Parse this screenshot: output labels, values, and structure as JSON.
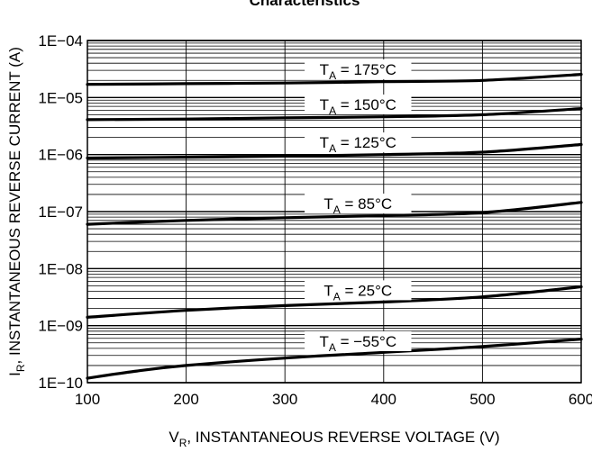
{
  "chart_data": {
    "type": "line",
    "title": "Characteristics",
    "xlabel": {
      "main": "V",
      "sub": "R",
      "rest": ", INSTANTANEOUS REVERSE VOLTAGE (V)"
    },
    "ylabel": {
      "main": "I",
      "sub": "R",
      "rest": ", INSTANTANEOUS REVERSE CURRENT (A)"
    },
    "x_scale": "linear",
    "y_scale": "log",
    "xlim": [
      100,
      600
    ],
    "ylim": [
      1e-10,
      0.0001
    ],
    "x_ticks": [
      100,
      200,
      300,
      400,
      500,
      600
    ],
    "x_tick_labels": [
      "100",
      "200",
      "300",
      "400",
      "500",
      "600"
    ],
    "y_ticks": [
      1e-10,
      1e-09,
      1e-08,
      1e-07,
      1e-06,
      1e-05,
      0.0001
    ],
    "y_tick_labels": [
      "1E−10",
      "1E−09",
      "1E−08",
      "1E−07",
      "1E−06",
      "1E−05",
      "1E−04"
    ],
    "grid": true,
    "line_color": "#000000",
    "series": [
      {
        "name": "T_A = 175°C",
        "label_main": "T",
        "label_sub": "A",
        "label_rest": " = 175°C",
        "x": [
          100,
          200,
          300,
          400,
          500,
          600
        ],
        "y": [
          1.7e-05,
          1.75e-05,
          1.8e-05,
          1.9e-05,
          2e-05,
          2.55e-05
        ]
      },
      {
        "name": "T_A = 150°C",
        "label_main": "T",
        "label_sub": "A",
        "label_rest": " = 150°C",
        "x": [
          100,
          200,
          300,
          400,
          500,
          600
        ],
        "y": [
          4.1e-06,
          4.2e-06,
          4.4e-06,
          4.6e-06,
          5e-06,
          6.4e-06
        ]
      },
      {
        "name": "T_A = 125°C",
        "label_main": "T",
        "label_sub": "A",
        "label_rest": " = 125°C",
        "x": [
          100,
          200,
          300,
          400,
          500,
          600
        ],
        "y": [
          8.7e-07,
          9e-07,
          9.4e-07,
          1e-06,
          1.1e-06,
          1.5e-06
        ]
      },
      {
        "name": "T_A = 85°C",
        "label_main": "T",
        "label_sub": "A",
        "label_rest": " = 85°C",
        "x": [
          100,
          200,
          300,
          400,
          500,
          600
        ],
        "y": [
          6e-08,
          7e-08,
          7.8e-08,
          8.5e-08,
          9.6e-08,
          1.45e-07
        ]
      },
      {
        "name": "T_A = 25°C",
        "label_main": "T",
        "label_sub": "A",
        "label_rest": " = 25°C",
        "x": [
          100,
          200,
          300,
          400,
          500,
          600
        ],
        "y": [
          1.4e-09,
          1.85e-09,
          2.25e-09,
          2.6e-09,
          3.2e-09,
          4.8e-09
        ]
      },
      {
        "name": "T_A = −55°C",
        "label_main": "T",
        "label_sub": "A",
        "label_rest": " = −55°C",
        "x": [
          100,
          150,
          200,
          300,
          400,
          500,
          600
        ],
        "y": [
          1.2e-10,
          1.6e-10,
          2e-10,
          2.7e-10,
          3.4e-10,
          4.3e-10,
          5.8e-10
        ]
      }
    ]
  }
}
